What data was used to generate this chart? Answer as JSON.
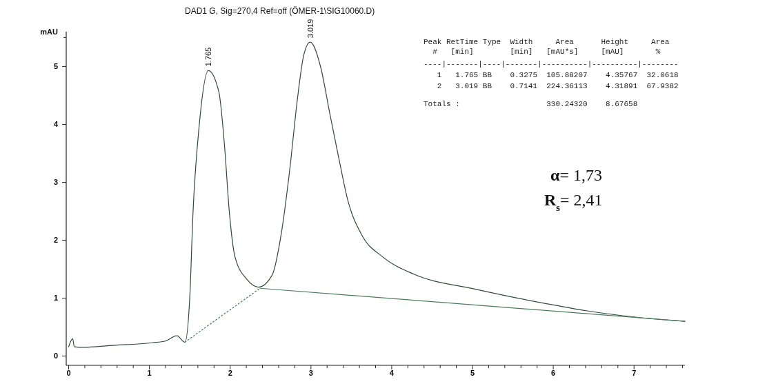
{
  "chart_data": {
    "type": "line",
    "title": "DAD1 G, Sig=270,4 Ref=off (ÖMER-1\\SIG10060.D)",
    "ylabel": "mAU",
    "xlim": [
      -0.03,
      7.63
    ],
    "ylim": [
      -0.16,
      5.6
    ],
    "xticks": [
      0,
      {
        "value": 0.2,
        "label": null
      },
      {
        "value": 0.4,
        "label": null
      },
      {
        "value": 0.6,
        "label": null
      },
      {
        "value": 0.8,
        "label": null
      },
      1,
      {
        "value": 1.2,
        "label": null
      },
      {
        "value": 1.4,
        "label": null
      },
      {
        "value": 1.6,
        "label": null
      },
      {
        "value": 1.8,
        "label": null
      },
      2,
      {
        "value": 2.2,
        "label": null
      },
      {
        "value": 2.4,
        "label": null
      },
      {
        "value": 2.6,
        "label": null
      },
      {
        "value": 2.8,
        "label": null
      },
      3,
      {
        "value": 3.2,
        "label": null
      },
      {
        "value": 3.4,
        "label": null
      },
      {
        "value": 3.6,
        "label": null
      },
      {
        "value": 3.8,
        "label": null
      },
      4,
      {
        "value": 4.2,
        "label": null
      },
      {
        "value": 4.4,
        "label": null
      },
      {
        "value": 4.6,
        "label": null
      },
      {
        "value": 4.8,
        "label": null
      },
      5,
      {
        "value": 5.2,
        "label": null
      },
      {
        "value": 5.4,
        "label": null
      },
      {
        "value": 5.6,
        "label": null
      },
      {
        "value": 5.8,
        "label": null
      },
      6,
      {
        "value": 6.2,
        "label": null
      },
      {
        "value": 6.4,
        "label": null
      },
      {
        "value": 6.6,
        "label": null
      },
      {
        "value": 6.8,
        "label": null
      },
      7,
      {
        "value": 7.2,
        "label": null
      },
      {
        "value": 7.4,
        "label": null
      },
      {
        "value": 7.6,
        "label": null
      }
    ],
    "yticks": [
      0,
      1,
      2,
      3,
      4,
      5,
      {
        "value": 5.5,
        "label": null
      }
    ],
    "grid": false,
    "marker": "none",
    "series": [
      {
        "color": "#2f4a38",
        "line_style": "solid",
        "x": [
          0,
          0.05,
          0.07,
          0.19,
          0.5,
          1.04,
          1.2,
          1.34,
          1.44,
          1.5,
          1.54,
          1.62,
          1.73,
          1.86,
          1.93,
          1.99,
          2.06,
          2.21,
          2.35,
          2.52,
          2.63,
          2.74,
          2.83,
          2.91,
          2.99,
          3.12,
          3.23,
          3.34,
          3.46,
          3.63,
          3.89,
          4.28,
          5.02,
          6.05,
          6.42,
          7.03,
          7.63
        ],
        "values": [
          0.16,
          0.3,
          0.16,
          0.15,
          0.18,
          0.23,
          0.26,
          0.35,
          0.24,
          1.02,
          2.48,
          4.03,
          4.93,
          4.56,
          3.63,
          2.48,
          1.71,
          1.32,
          1.19,
          1.4,
          2.09,
          3.25,
          4.41,
          5.19,
          5.42,
          4.99,
          4.21,
          3.45,
          2.67,
          2.09,
          1.71,
          1.41,
          1.16,
          0.87,
          0.78,
          0.67,
          0.6
        ]
      },
      {
        "color": "#4a7a5a",
        "line_style": "dotted",
        "x": [
          1.44,
          2.37
        ],
        "values": [
          0.24,
          1.17
        ]
      },
      {
        "color": "#4a7a5a",
        "line_style": "solid",
        "x": [
          2.37,
          7.63
        ],
        "values": [
          1.17,
          0.6
        ]
      }
    ],
    "annotations": [
      {
        "text": "1.765",
        "x": 1.73,
        "y": 4.93
      },
      {
        "text": "3.019",
        "x": 2.99,
        "y": 5.42
      },
      "Peak RetTime Type  Width     Area      Height     Area",
      "  #   [min]        [min]   [mAU*s]     [mAU]       %",
      "----|-------|----|-------|----------|----------|--------",
      "   1   1.765 BB    0.3275  105.88207    4.35767  32.0618",
      "   2   3.019 BB    0.7141  224.36113    4.31891  67.9382",
      "Totals :                   330.24320    8.67658",
      "α= 1,73",
      "R$_{s}$= 2,41"
    ]
  }
}
